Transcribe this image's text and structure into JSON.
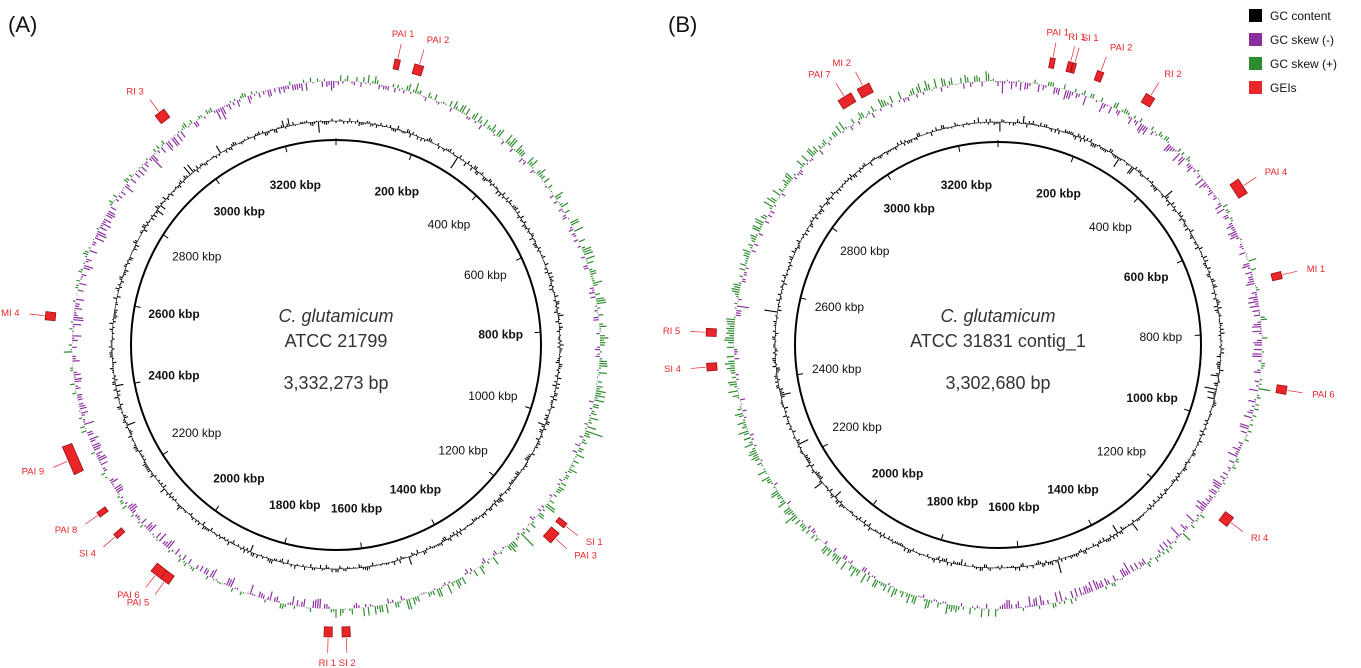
{
  "colors": {
    "gc_content": "#000000",
    "gc_skew_neg": "#8b2f9e",
    "gc_skew_pos": "#2e8b2e",
    "gei": "#e8262a",
    "gei_dark": "#a01015",
    "backbone": "#000000"
  },
  "legend": [
    {
      "label": "GC content",
      "color": "#000000"
    },
    {
      "label": "GC skew (-)",
      "color": "#8b2f9e"
    },
    {
      "label": "GC skew (+)",
      "color": "#2e8b2e"
    },
    {
      "label": "GEIs",
      "color": "#e8262a"
    }
  ],
  "panels": [
    {
      "letter": "(A)",
      "organism": "C. glutamicum",
      "strain": "ATCC 21799",
      "size_label": "3,332,273 bp",
      "genome_length_bp": 3332273,
      "ticks": [
        {
          "label": "200 kbp",
          "bold": true
        },
        {
          "label": "400 kbp",
          "bold": false
        },
        {
          "label": "600 kbp",
          "bold": false
        },
        {
          "label": "800 kbp",
          "bold": true
        },
        {
          "label": "1000 kbp",
          "bold": false
        },
        {
          "label": "1200 kbp",
          "bold": false
        },
        {
          "label": "1400 kbp",
          "bold": true
        },
        {
          "label": "1600 kbp",
          "bold": true
        },
        {
          "label": "1800 kbp",
          "bold": true
        },
        {
          "label": "2000 kbp",
          "bold": true
        },
        {
          "label": "2200 kbp",
          "bold": false
        },
        {
          "label": "2400 kbp",
          "bold": true
        },
        {
          "label": "2600 kbp",
          "bold": true
        },
        {
          "label": "2800 kbp",
          "bold": false
        },
        {
          "label": "3000 kbp",
          "bold": true
        },
        {
          "label": "3200 kbp",
          "bold": true
        }
      ],
      "geis": [
        {
          "name": "PAI 1",
          "start_kbp": 108,
          "end_kbp": 118
        },
        {
          "name": "PAI 2",
          "start_kbp": 145,
          "end_kbp": 162
        },
        {
          "name": "PAI 3",
          "start_kbp": 1205,
          "end_kbp": 1228
        },
        {
          "name": "SI 1",
          "start_kbp": 1182,
          "end_kbp": 1192
        },
        {
          "name": "SI 2",
          "start_kbp": 1640,
          "end_kbp": 1655
        },
        {
          "name": "RI 1",
          "start_kbp": 1673,
          "end_kbp": 1688
        },
        {
          "name": "PAI 5",
          "start_kbp": 1990,
          "end_kbp": 2008
        },
        {
          "name": "PAI 6",
          "start_kbp": 2008,
          "end_kbp": 2030
        },
        {
          "name": "SI 4",
          "start_kbp": 2115,
          "end_kbp": 2125
        },
        {
          "name": "PAI 8",
          "start_kbp": 2165,
          "end_kbp": 2175
        },
        {
          "name": "PAI 9",
          "start_kbp": 2255,
          "end_kbp": 2310
        },
        {
          "name": "MI 4",
          "start_kbp": 2545,
          "end_kbp": 2560
        },
        {
          "name": "RI 3",
          "start_kbp": 2978,
          "end_kbp": 2998
        }
      ]
    },
    {
      "letter": "(B)",
      "organism": "C. glutamicum",
      "strain": "ATCC 31831 contig_1",
      "size_label": "3,302,680 bp",
      "genome_length_bp": 3302680,
      "ticks": [
        {
          "label": "200 kbp",
          "bold": true
        },
        {
          "label": "400 kbp",
          "bold": false
        },
        {
          "label": "600 kbp",
          "bold": true
        },
        {
          "label": "800 kbp",
          "bold": false
        },
        {
          "label": "1000 kbp",
          "bold": true
        },
        {
          "label": "1200 kbp",
          "bold": false
        },
        {
          "label": "1400 kbp",
          "bold": true
        },
        {
          "label": "1600 kbp",
          "bold": true
        },
        {
          "label": "1800 kbp",
          "bold": true
        },
        {
          "label": "2000 kbp",
          "bold": true
        },
        {
          "label": "2200 kbp",
          "bold": false
        },
        {
          "label": "2400 kbp",
          "bold": false
        },
        {
          "label": "2600 kbp",
          "bold": false
        },
        {
          "label": "2800 kbp",
          "bold": false
        },
        {
          "label": "3000 kbp",
          "bold": true
        },
        {
          "label": "3200 kbp",
          "bold": true
        }
      ],
      "geis": [
        {
          "name": "PAI 1",
          "start_kbp": 95,
          "end_kbp": 104
        },
        {
          "name": "RI 1",
          "start_kbp": 128,
          "end_kbp": 136
        },
        {
          "name": "SI 1",
          "start_kbp": 137,
          "end_kbp": 143
        },
        {
          "name": "PAI 2",
          "start_kbp": 183,
          "end_kbp": 195
        },
        {
          "name": "RI 2",
          "start_kbp": 280,
          "end_kbp": 298
        },
        {
          "name": "PAI 4",
          "start_kbp": 508,
          "end_kbp": 538
        },
        {
          "name": "MI 1",
          "start_kbp": 692,
          "end_kbp": 705
        },
        {
          "name": "PAI 6",
          "start_kbp": 900,
          "end_kbp": 915
        },
        {
          "name": "RI 4",
          "start_kbp": 1158,
          "end_kbp": 1178
        },
        {
          "name": "SI 4",
          "start_kbp": 2430,
          "end_kbp": 2444
        },
        {
          "name": "RI 5",
          "start_kbp": 2493,
          "end_kbp": 2507
        },
        {
          "name": "PAI 7",
          "start_kbp": 2998,
          "end_kbp": 3025
        },
        {
          "name": "MI 2",
          "start_kbp": 3038,
          "end_kbp": 3062
        }
      ]
    }
  ]
}
